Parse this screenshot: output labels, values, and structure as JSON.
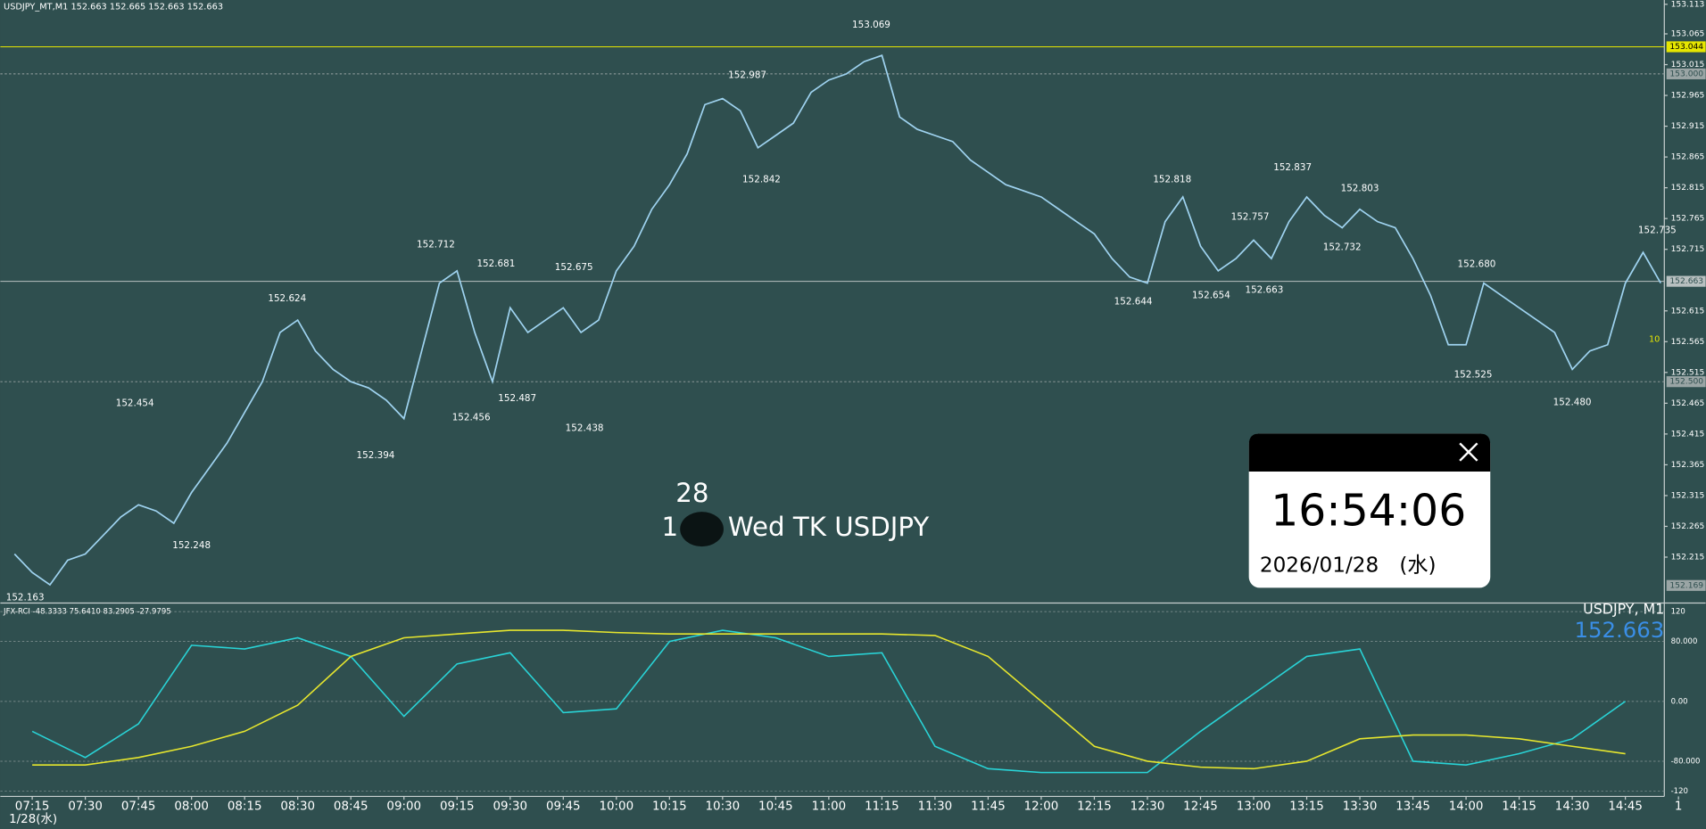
{
  "header": "USDJPY_MT,M1  152.663 152.665 152.663 152.663",
  "chart_data": [
    {
      "type": "line",
      "color": "#9fd3f0",
      "xlim": [
        "07:06",
        "14:56"
      ],
      "ylim": [
        152.144,
        153.12
      ],
      "x": [
        "07:10",
        "07:15",
        "07:20",
        "07:25",
        "07:30",
        "07:35",
        "07:40",
        "07:45",
        "07:50",
        "07:55",
        "08:00",
        "08:05",
        "08:10",
        "08:15",
        "08:20",
        "08:25",
        "08:30",
        "08:35",
        "08:40",
        "08:45",
        "08:50",
        "08:55",
        "09:00",
        "09:05",
        "09:10",
        "09:15",
        "09:20",
        "09:25",
        "09:30",
        "09:35",
        "09:40",
        "09:45",
        "09:50",
        "09:55",
        "10:00",
        "10:05",
        "10:10",
        "10:15",
        "10:20",
        "10:25",
        "10:30",
        "10:35",
        "10:40",
        "10:45",
        "10:50",
        "10:55",
        "11:00",
        "11:05",
        "11:10",
        "11:15",
        "11:20",
        "11:25",
        "11:30",
        "11:35",
        "11:40",
        "11:45",
        "11:50",
        "11:55",
        "12:00",
        "12:05",
        "12:10",
        "12:15",
        "12:20",
        "12:25",
        "12:30",
        "12:35",
        "12:40",
        "12:45",
        "12:50",
        "12:55",
        "13:00",
        "13:05",
        "13:10",
        "13:15",
        "13:20",
        "13:25",
        "13:30",
        "13:35",
        "13:40",
        "13:45",
        "13:50",
        "13:55",
        "14:00",
        "14:05",
        "14:10",
        "14:15",
        "14:20",
        "14:25",
        "14:30",
        "14:35",
        "14:40",
        "14:45",
        "14:50",
        "14:55"
      ],
      "values": [
        152.22,
        152.19,
        152.17,
        152.21,
        152.22,
        152.25,
        152.28,
        152.3,
        152.29,
        152.27,
        152.32,
        152.36,
        152.4,
        152.45,
        152.5,
        152.58,
        152.6,
        152.55,
        152.52,
        152.5,
        152.49,
        152.47,
        152.44,
        152.55,
        152.66,
        152.68,
        152.58,
        152.5,
        152.62,
        152.58,
        152.6,
        152.62,
        152.58,
        152.6,
        152.68,
        152.72,
        152.78,
        152.82,
        152.87,
        152.95,
        152.96,
        152.94,
        152.88,
        152.9,
        152.92,
        152.97,
        152.99,
        153.0,
        153.02,
        153.03,
        152.93,
        152.91,
        152.9,
        152.89,
        152.86,
        152.84,
        152.82,
        152.81,
        152.8,
        152.78,
        152.76,
        152.74,
        152.7,
        152.67,
        152.66,
        152.76,
        152.8,
        152.72,
        152.68,
        152.7,
        152.73,
        152.7,
        152.76,
        152.8,
        152.77,
        152.75,
        152.78,
        152.76,
        152.75,
        152.7,
        152.64,
        152.56,
        152.56,
        152.66,
        152.64,
        152.62,
        152.6,
        152.58,
        152.52,
        152.55,
        152.56,
        152.66,
        152.71,
        152.66
      ],
      "yticks": [
        153.113,
        153.065,
        153.015,
        152.965,
        152.915,
        152.865,
        152.815,
        152.765,
        152.715,
        152.615,
        152.565,
        152.515,
        152.465,
        152.415,
        152.365,
        152.315,
        152.265,
        152.215
      ],
      "levels": [
        {
          "value": 153.044,
          "color": "#e6e600",
          "text_color": "#000000"
        },
        {
          "value": 153,
          "label": "153.000",
          "color": "#9aa5a5",
          "text_color": "#2f4f4f"
        },
        {
          "value": 152.663,
          "color": "#b8c0c0",
          "text_color": "#2f4f4f"
        },
        {
          "value": 152.5,
          "label": "152.500",
          "color": "#9aa5a5",
          "text_color": "#2f4f4f"
        },
        {
          "value": 152.169,
          "color": "#9aa5a5",
          "text_color": "#2f4f4f",
          "line": false
        }
      ],
      "annotations": [
        {
          "x": "07:13",
          "value": 152.163,
          "kind": "low"
        },
        {
          "x": "08:00",
          "value": 152.248,
          "kind": "low"
        },
        {
          "x": "07:44",
          "value": 152.454,
          "kind": "high"
        },
        {
          "x": "08:27",
          "value": 152.624,
          "kind": "high"
        },
        {
          "x": "08:52",
          "value": 152.394,
          "kind": "low"
        },
        {
          "x": "09:09",
          "value": 152.712,
          "kind": "high"
        },
        {
          "x": "09:19",
          "value": 152.456,
          "kind": "low"
        },
        {
          "x": "09:26",
          "value": 152.681,
          "kind": "high"
        },
        {
          "x": "09:32",
          "value": 152.487,
          "kind": "low"
        },
        {
          "x": "09:48",
          "value": 152.675,
          "kind": "high"
        },
        {
          "x": "09:51",
          "value": 152.438,
          "kind": "low"
        },
        {
          "x": "10:37",
          "value": 152.987,
          "kind": "high"
        },
        {
          "x": "10:41",
          "value": 152.842,
          "kind": "low"
        },
        {
          "x": "11:12",
          "value": 153.069,
          "kind": "high"
        },
        {
          "x": "12:37",
          "value": 152.818,
          "kind": "high"
        },
        {
          "x": "12:26",
          "value": 152.644,
          "kind": "low"
        },
        {
          "x": "12:48",
          "value": 152.654,
          "kind": "low"
        },
        {
          "x": "12:59",
          "value": 152.757,
          "kind": "high"
        },
        {
          "x": "13:03",
          "value": 152.663,
          "kind": "low"
        },
        {
          "x": "13:11",
          "value": 152.837,
          "kind": "high"
        },
        {
          "x": "13:25",
          "value": 152.732,
          "kind": "low"
        },
        {
          "x": "13:30",
          "value": 152.803,
          "kind": "high"
        },
        {
          "x": "14:03",
          "value": 152.68,
          "label": "152.680",
          "kind": "high"
        },
        {
          "x": "14:02",
          "value": 152.525,
          "kind": "low"
        },
        {
          "x": "14:30",
          "value": 152.48,
          "label": "152.480",
          "kind": "low"
        },
        {
          "x": "14:54",
          "value": 152.735,
          "kind": "high"
        }
      ],
      "xticks": [
        "07:15",
        "07:30",
        "07:45",
        "08:00",
        "08:15",
        "08:30",
        "08:45",
        "09:00",
        "09:15",
        "09:30",
        "09:45",
        "10:00",
        "10:15",
        "10:30",
        "10:45",
        "11:00",
        "11:15",
        "11:30",
        "11:45",
        "12:00",
        "12:15",
        "12:30",
        "12:45",
        "13:00",
        "13:15",
        "13:30",
        "13:45",
        "14:00",
        "14:15",
        "14:30",
        "14:45",
        {
          "value": "15:00",
          "label": "1"
        }
      ],
      "date_label": "1/28(水)",
      "cut_label": "10"
    },
    {
      "type": "line",
      "title": "JFX-RCI -48.3333 75.6410 83.2905 -27.9795",
      "xlim": [
        "07:06",
        "14:56"
      ],
      "ylim": [
        -127,
        130
      ],
      "x": [
        "07:15",
        "07:30",
        "07:45",
        "08:00",
        "08:15",
        "08:30",
        "08:45",
        "09:00",
        "09:15",
        "09:30",
        "09:45",
        "10:00",
        "10:15",
        "10:30",
        "10:45",
        "11:00",
        "11:15",
        "11:30",
        "11:45",
        "12:00",
        "12:15",
        "12:30",
        "12:45",
        "13:00",
        "13:15",
        "13:30",
        "13:45",
        "14:00",
        "14:15",
        "14:30",
        "14:45"
      ],
      "series": [
        {
          "color": "#29d3d6",
          "values": [
            -40,
            -75,
            -30,
            75,
            70,
            85,
            60,
            -20,
            50,
            65,
            -15,
            -10,
            80,
            95,
            85,
            60,
            65,
            -60,
            -90,
            -95,
            -95,
            -95,
            -40,
            10,
            60,
            70,
            -80,
            -85,
            -70,
            -50,
            0
          ]
        },
        {
          "color": "#e6e62e",
          "values": [
            -85,
            -85,
            -75,
            -60,
            -40,
            -5,
            60,
            85,
            90,
            95,
            95,
            92,
            90,
            90,
            90,
            90,
            90,
            88,
            60,
            0,
            -60,
            -80,
            -88,
            -90,
            -80,
            -50,
            -45,
            -45,
            -50,
            -60,
            -70
          ]
        }
      ],
      "yticks": [
        120,
        {
          "value": 80,
          "label": "80.000"
        },
        {
          "value": 0,
          "label": "0.00"
        },
        {
          "value": -80,
          "label": "-80.000"
        },
        -120
      ]
    }
  ],
  "symbol": "USDJPY, M1",
  "bid": 152.663,
  "watermark": {
    "day": "28",
    "prefix": "1",
    "text": "Wed TK USDJPY"
  },
  "clock": {
    "time": "16:54:06",
    "date": "2026/01/28　(水)"
  }
}
